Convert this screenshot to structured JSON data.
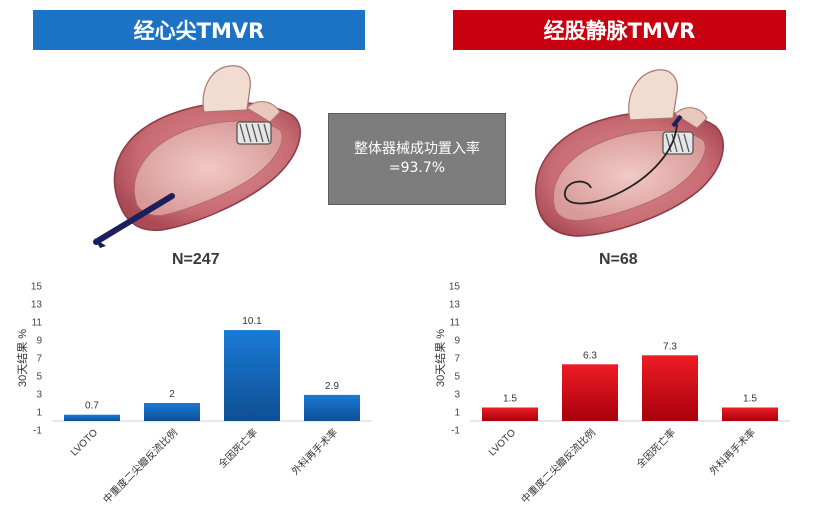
{
  "headers": {
    "left": "经心尖TMVR",
    "right": "经股静脉TMVR"
  },
  "center_box": {
    "line1": "整体器械成功置入率",
    "line2": "=93.7%"
  },
  "n_labels": {
    "left": "N=247",
    "right": "N=68"
  },
  "colors": {
    "left_header": "#1c73c5",
    "right_header": "#c8000f",
    "left_bar_top": "#1a7ad6",
    "left_bar_bottom": "#0e4f93",
    "right_bar_top": "#ee1c24",
    "right_bar_bottom": "#a8000c"
  },
  "chart_data": [
    {
      "type": "bar",
      "title": "",
      "xlabel": "",
      "ylabel": "30天结果 %",
      "categories": [
        "LVOTO",
        "中重度二尖瓣反流比例",
        "全因死亡率",
        "外科再手术率"
      ],
      "values": [
        0.7,
        2,
        10.1,
        2.9
      ],
      "data_labels": [
        "0.7",
        "2",
        "10.1",
        "2.9"
      ],
      "ylim": [
        -1,
        15
      ],
      "yticks": [
        "-1",
        "1",
        "3",
        "5",
        "7",
        "9",
        "11",
        "13",
        "15"
      ],
      "grid": false
    },
    {
      "type": "bar",
      "title": "",
      "xlabel": "",
      "ylabel": "30天结果 %",
      "categories": [
        "LVOTO",
        "中重度二尖瓣反流比例",
        "全因死亡率",
        "外科再手术率"
      ],
      "values": [
        1.5,
        6.3,
        7.3,
        1.5
      ],
      "data_labels": [
        "1.5",
        "6.3",
        "7.3",
        "1.5"
      ],
      "ylim": [
        -1,
        15
      ],
      "yticks": [
        "-1",
        "1",
        "3",
        "5",
        "7",
        "9",
        "11",
        "13",
        "15"
      ],
      "grid": false
    }
  ]
}
